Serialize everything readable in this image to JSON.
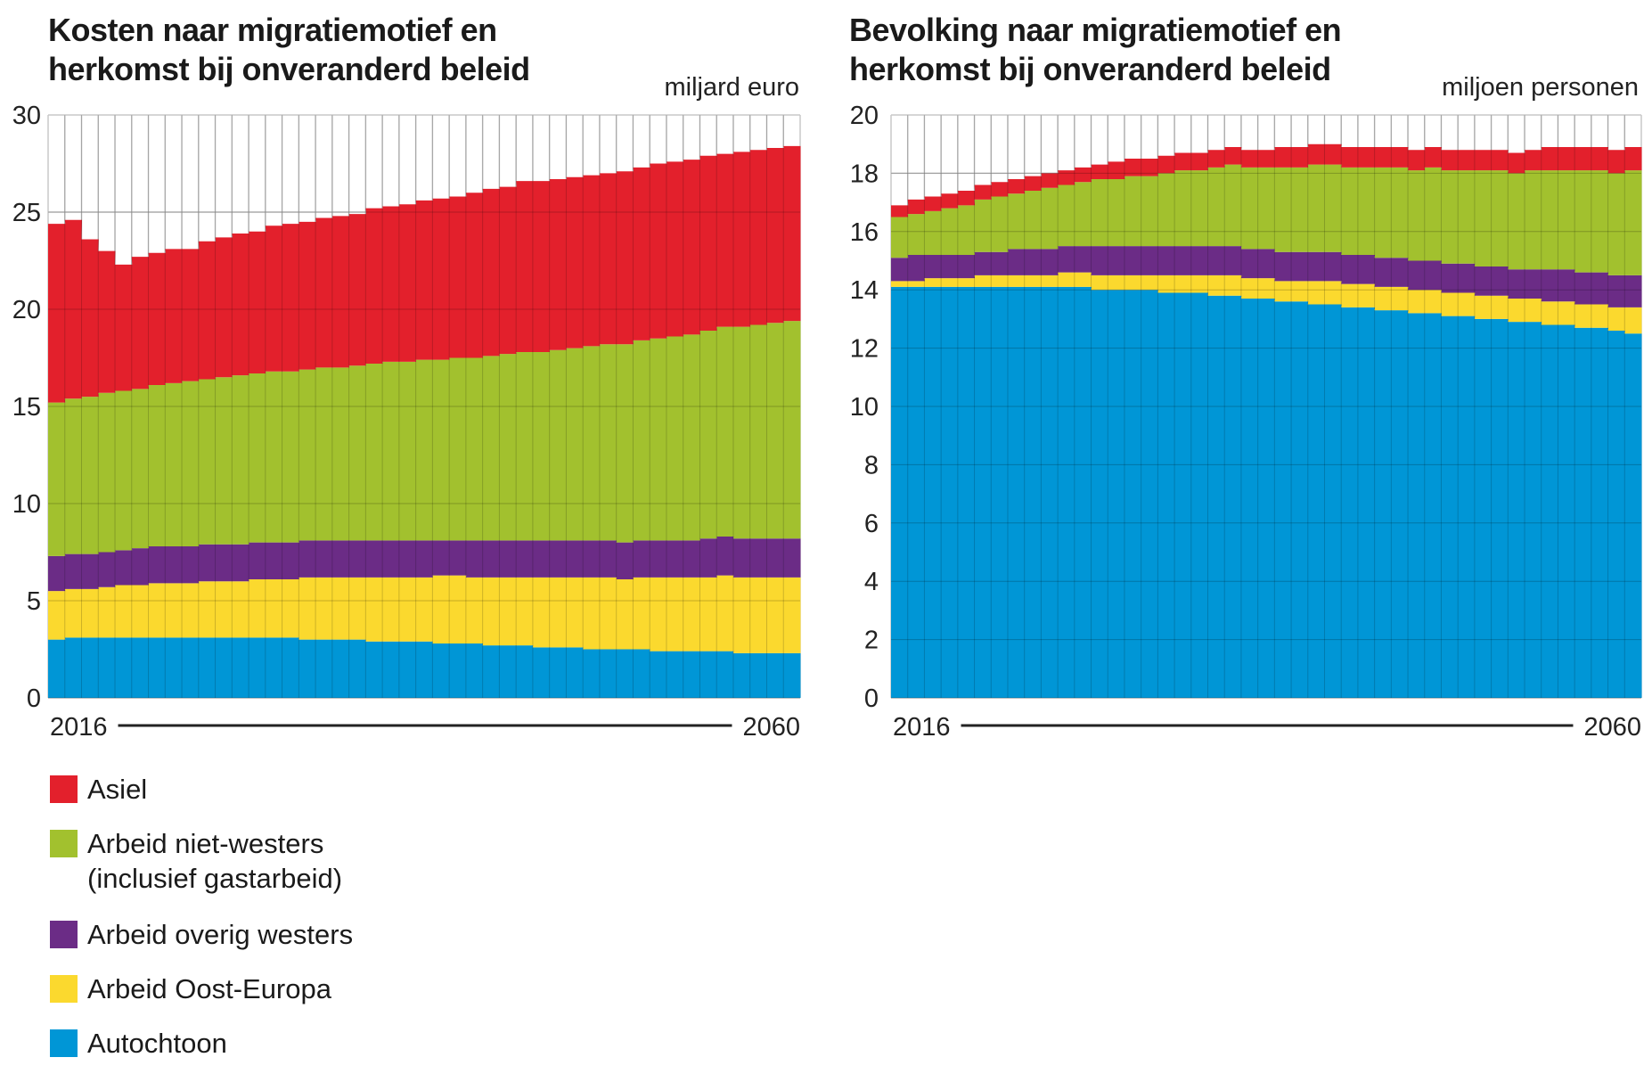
{
  "legend": [
    {
      "key": "asiel",
      "lines": [
        "Asiel"
      ],
      "color": "#e3202c"
    },
    {
      "key": "arbeid_niet_westers",
      "lines": [
        "Arbeid niet-westers",
        "(inclusief gastarbeid)"
      ],
      "color": "#a2c12e"
    },
    {
      "key": "arbeid_overig_westers",
      "lines": [
        "Arbeid overig westers"
      ],
      "color": "#6b2c86"
    },
    {
      "key": "arbeid_oost_europa",
      "lines": [
        "Arbeid Oost-Europa"
      ],
      "color": "#fbd92e"
    },
    {
      "key": "autochtoon",
      "lines": [
        "Autochtoon"
      ],
      "color": "#0096d6"
    }
  ],
  "chart_data": [
    {
      "type": "area",
      "stacked": true,
      "title_lines": [
        "Kosten naar migratiemotief en",
        "herkomst bij onveranderd beleid"
      ],
      "unit": "miljard euro",
      "x_start_label": "2016",
      "x_end_label": "2060",
      "x_start": 2016,
      "x_end": 2060,
      "ylim": [
        0,
        30
      ],
      "yticks": [
        0,
        5,
        10,
        15,
        20,
        25,
        30
      ],
      "grid": true,
      "series": [
        {
          "name": "Autochtoon",
          "color": "#0096d6",
          "values": [
            3.0,
            3.1,
            3.1,
            3.1,
            3.1,
            3.1,
            3.1,
            3.1,
            3.1,
            3.1,
            3.1,
            3.1,
            3.1,
            3.1,
            3.1,
            3.0,
            3.0,
            3.0,
            3.0,
            2.9,
            2.9,
            2.9,
            2.9,
            2.8,
            2.8,
            2.8,
            2.7,
            2.7,
            2.7,
            2.6,
            2.6,
            2.6,
            2.5,
            2.5,
            2.5,
            2.5,
            2.4,
            2.4,
            2.4,
            2.4,
            2.4,
            2.3,
            2.3,
            2.3,
            2.3
          ]
        },
        {
          "name": "Arbeid Oost-Europa",
          "color": "#fbd92e",
          "values": [
            2.5,
            2.5,
            2.5,
            2.6,
            2.7,
            2.7,
            2.8,
            2.8,
            2.8,
            2.9,
            2.9,
            2.9,
            3.0,
            3.0,
            3.0,
            3.2,
            3.2,
            3.2,
            3.2,
            3.3,
            3.3,
            3.3,
            3.3,
            3.5,
            3.5,
            3.4,
            3.5,
            3.5,
            3.5,
            3.6,
            3.6,
            3.6,
            3.7,
            3.7,
            3.6,
            3.7,
            3.8,
            3.8,
            3.8,
            3.8,
            3.9,
            3.9,
            3.9,
            3.9,
            3.9
          ]
        },
        {
          "name": "Arbeid overig westers",
          "color": "#6b2c86",
          "values": [
            1.8,
            1.8,
            1.8,
            1.8,
            1.8,
            1.9,
            1.9,
            1.9,
            1.9,
            1.9,
            1.9,
            1.9,
            1.9,
            1.9,
            1.9,
            1.9,
            1.9,
            1.9,
            1.9,
            1.9,
            1.9,
            1.9,
            1.9,
            1.8,
            1.8,
            1.9,
            1.9,
            1.9,
            1.9,
            1.9,
            1.9,
            1.9,
            1.9,
            1.9,
            1.9,
            1.9,
            1.9,
            1.9,
            1.9,
            2.0,
            2.0,
            2.0,
            2.0,
            2.0,
            2.0
          ]
        },
        {
          "name": "Arbeid niet-westers (inclusief gastarbeid)",
          "color": "#a2c12e",
          "values": [
            7.9,
            8.0,
            8.1,
            8.2,
            8.2,
            8.2,
            8.3,
            8.4,
            8.5,
            8.5,
            8.6,
            8.7,
            8.7,
            8.8,
            8.8,
            8.8,
            8.9,
            8.9,
            9.0,
            9.1,
            9.2,
            9.2,
            9.3,
            9.3,
            9.4,
            9.4,
            9.5,
            9.6,
            9.7,
            9.7,
            9.8,
            9.9,
            10.0,
            10.1,
            10.2,
            10.3,
            10.4,
            10.5,
            10.6,
            10.7,
            10.8,
            10.9,
            11.0,
            11.1,
            11.2
          ]
        },
        {
          "name": "Asiel",
          "color": "#e3202c",
          "values": [
            9.2,
            9.2,
            8.1,
            7.3,
            6.5,
            6.8,
            6.8,
            6.9,
            6.8,
            7.1,
            7.2,
            7.3,
            7.3,
            7.5,
            7.6,
            7.6,
            7.7,
            7.8,
            7.8,
            8.0,
            8.0,
            8.1,
            8.2,
            8.3,
            8.3,
            8.5,
            8.6,
            8.6,
            8.8,
            8.8,
            8.8,
            8.8,
            8.8,
            8.8,
            8.9,
            8.9,
            9.0,
            9.0,
            9.0,
            9.0,
            8.9,
            9.0,
            9.0,
            9.0,
            9.0
          ]
        }
      ]
    },
    {
      "type": "area",
      "stacked": true,
      "title_lines": [
        "Bevolking naar migratiemotief en",
        "herkomst bij onveranderd beleid"
      ],
      "unit": "miljoen personen",
      "x_start_label": "2016",
      "x_end_label": "2060",
      "x_start": 2016,
      "x_end": 2060,
      "ylim": [
        0,
        20
      ],
      "yticks": [
        0,
        2,
        4,
        6,
        8,
        10,
        12,
        14,
        16,
        18,
        20
      ],
      "grid": true,
      "series": [
        {
          "name": "Autochtoon",
          "color": "#0096d6",
          "values": [
            14.1,
            14.1,
            14.1,
            14.1,
            14.1,
            14.1,
            14.1,
            14.1,
            14.1,
            14.1,
            14.1,
            14.1,
            14.0,
            14.0,
            14.0,
            14.0,
            13.9,
            13.9,
            13.9,
            13.8,
            13.8,
            13.7,
            13.7,
            13.6,
            13.6,
            13.5,
            13.5,
            13.4,
            13.4,
            13.3,
            13.3,
            13.2,
            13.2,
            13.1,
            13.1,
            13.0,
            13.0,
            12.9,
            12.9,
            12.8,
            12.8,
            12.7,
            12.7,
            12.6,
            12.5
          ]
        },
        {
          "name": "Arbeid Oost-Europa",
          "color": "#fbd92e",
          "values": [
            0.2,
            0.2,
            0.3,
            0.3,
            0.3,
            0.4,
            0.4,
            0.4,
            0.4,
            0.4,
            0.5,
            0.5,
            0.5,
            0.5,
            0.5,
            0.5,
            0.6,
            0.6,
            0.6,
            0.7,
            0.7,
            0.7,
            0.7,
            0.7,
            0.7,
            0.8,
            0.8,
            0.8,
            0.8,
            0.8,
            0.8,
            0.8,
            0.8,
            0.8,
            0.8,
            0.8,
            0.8,
            0.8,
            0.8,
            0.8,
            0.8,
            0.8,
            0.8,
            0.8,
            0.9
          ]
        },
        {
          "name": "Arbeid overig westers",
          "color": "#6b2c86",
          "values": [
            0.8,
            0.9,
            0.8,
            0.8,
            0.8,
            0.8,
            0.8,
            0.9,
            0.9,
            0.9,
            0.9,
            0.9,
            1.0,
            1.0,
            1.0,
            1.0,
            1.0,
            1.0,
            1.0,
            1.0,
            1.0,
            1.0,
            1.0,
            1.0,
            1.0,
            1.0,
            1.0,
            1.0,
            1.0,
            1.0,
            1.0,
            1.0,
            1.0,
            1.0,
            1.0,
            1.0,
            1.0,
            1.0,
            1.0,
            1.1,
            1.1,
            1.1,
            1.1,
            1.1,
            1.1
          ]
        },
        {
          "name": "Arbeid niet-westers (inclusief gastarbeid)",
          "color": "#a2c12e",
          "values": [
            1.4,
            1.4,
            1.5,
            1.6,
            1.7,
            1.8,
            1.9,
            1.9,
            2.0,
            2.1,
            2.1,
            2.2,
            2.3,
            2.3,
            2.4,
            2.4,
            2.5,
            2.6,
            2.6,
            2.7,
            2.8,
            2.8,
            2.8,
            2.9,
            2.9,
            3.0,
            3.0,
            3.0,
            3.0,
            3.1,
            3.1,
            3.1,
            3.2,
            3.2,
            3.2,
            3.3,
            3.3,
            3.3,
            3.4,
            3.4,
            3.4,
            3.5,
            3.5,
            3.5,
            3.6
          ]
        },
        {
          "name": "Asiel",
          "color": "#e3202c",
          "values": [
            0.4,
            0.5,
            0.5,
            0.5,
            0.5,
            0.5,
            0.5,
            0.5,
            0.5,
            0.5,
            0.5,
            0.5,
            0.5,
            0.6,
            0.6,
            0.6,
            0.6,
            0.6,
            0.6,
            0.6,
            0.6,
            0.6,
            0.6,
            0.7,
            0.7,
            0.7,
            0.7,
            0.7,
            0.7,
            0.7,
            0.7,
            0.7,
            0.7,
            0.7,
            0.7,
            0.7,
            0.7,
            0.7,
            0.7,
            0.8,
            0.8,
            0.8,
            0.8,
            0.8,
            0.8
          ]
        }
      ]
    }
  ]
}
